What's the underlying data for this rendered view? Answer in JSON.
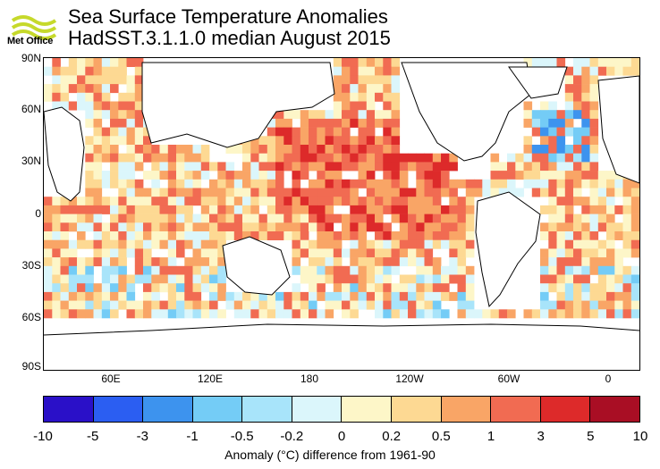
{
  "header": {
    "logo_text": "Met Office",
    "title_line1": "Sea Surface Temperature Anomalies",
    "title_line2": "HadSST.3.1.1.0 median August 2015"
  },
  "map": {
    "lat_labels": [
      "90N",
      "60N",
      "30N",
      "0",
      "30S",
      "60S",
      "90S"
    ],
    "lon_labels": [
      "60E",
      "120E",
      "180",
      "120W",
      "60W",
      "0"
    ]
  },
  "colorbar": {
    "colors": [
      "#2a10c8",
      "#2b5ef2",
      "#3d93ee",
      "#74ccf6",
      "#a8e4fa",
      "#dbf6fb",
      "#fdf6c8",
      "#fdd993",
      "#f9a566",
      "#f16b52",
      "#dd2a2a",
      "#a90e24"
    ],
    "ticks": [
      "-10",
      "-5",
      "-3",
      "-1",
      "-0.5",
      "-0.2",
      "0",
      "0.2",
      "0.5",
      "1",
      "3",
      "5",
      "10"
    ],
    "caption": "Anomaly (°C) difference from 1961-90"
  }
}
